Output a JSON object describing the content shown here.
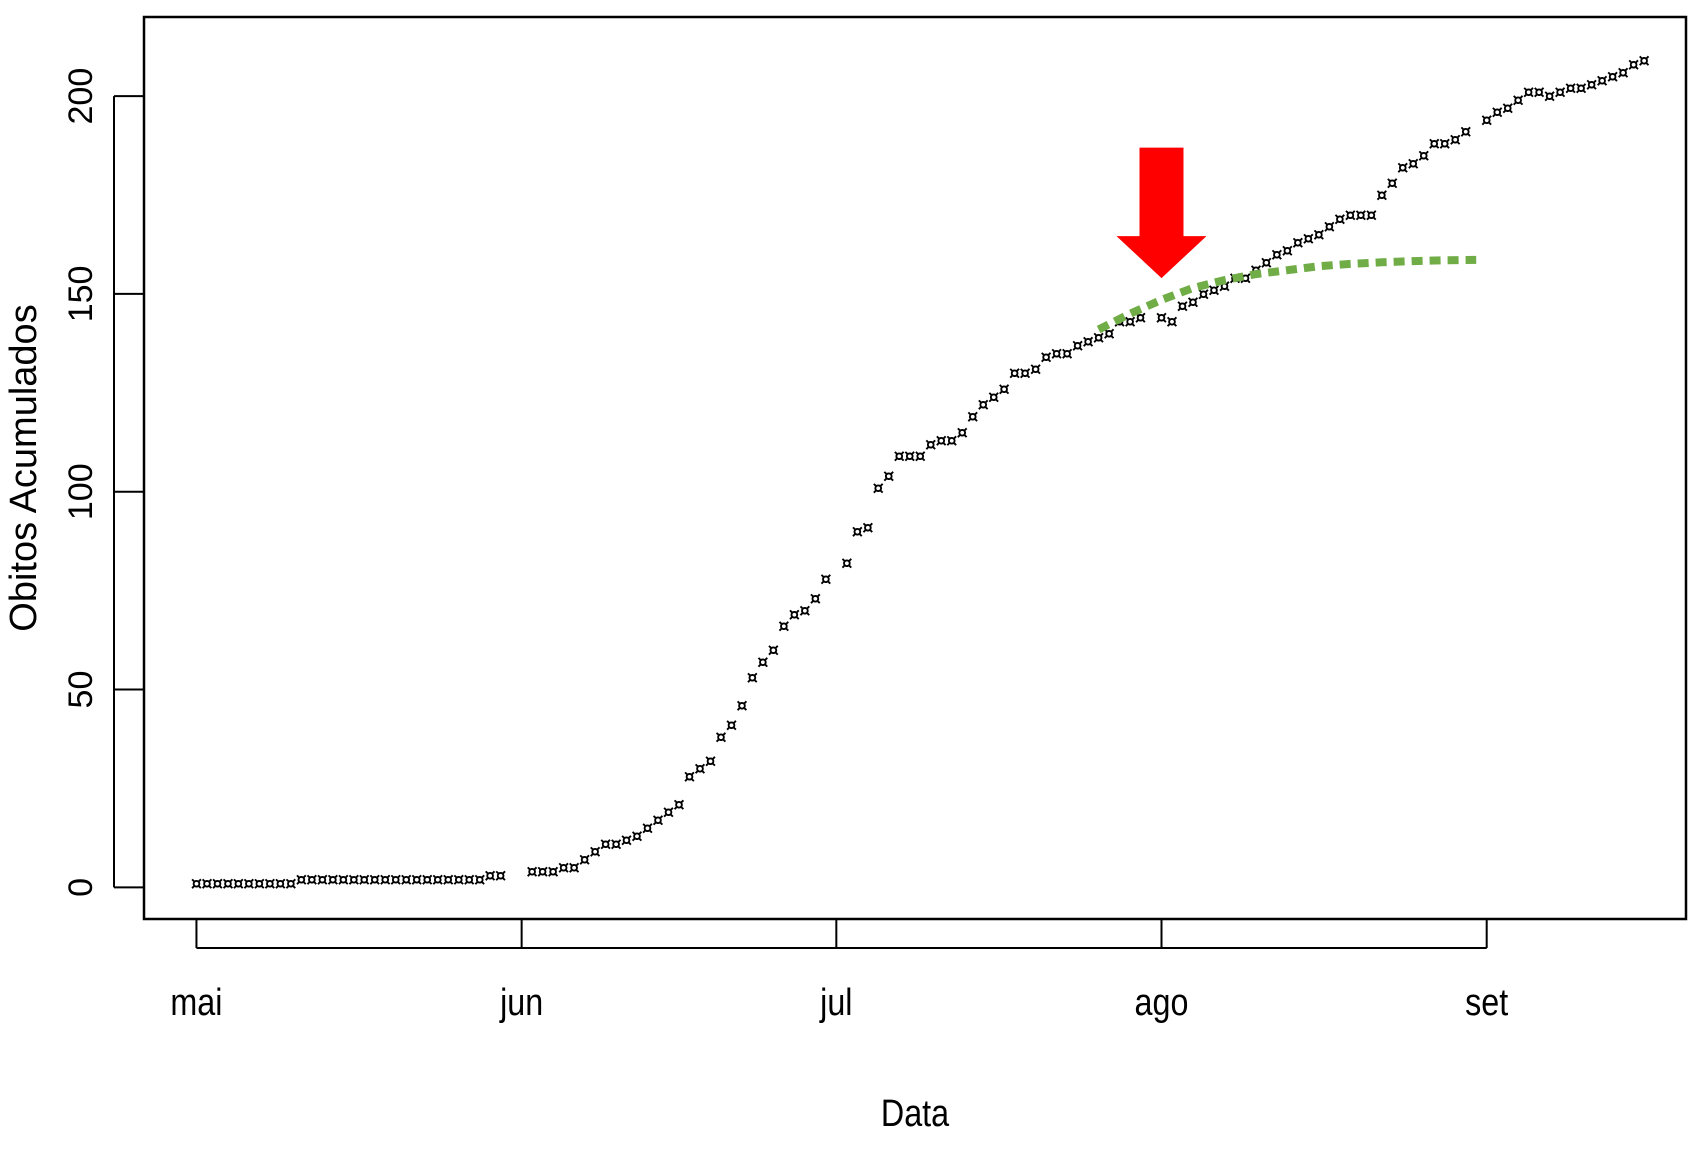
{
  "chart_data": {
    "type": "scatter",
    "xlabel": "Data",
    "ylabel": "Obitos Acumulados",
    "x_ticks": [
      {
        "label": "mai",
        "date": "2020-05-01"
      },
      {
        "label": "jun",
        "date": "2020-06-01"
      },
      {
        "label": "jul",
        "date": "2020-07-01"
      },
      {
        "label": "ago",
        "date": "2020-08-01"
      },
      {
        "label": "set",
        "date": "2020-09-01"
      }
    ],
    "xlim": [
      "2020-04-26",
      "2020-09-20"
    ],
    "ylim": [
      -8,
      220
    ],
    "y_ticks": [
      0,
      50,
      100,
      150,
      200
    ],
    "grid": false,
    "marker_glyph": "¤",
    "series": [
      {
        "style": "points",
        "color": "#000000",
        "x": [
          "2020-05-01",
          "2020-05-02",
          "2020-05-03",
          "2020-05-04",
          "2020-05-05",
          "2020-05-06",
          "2020-05-07",
          "2020-05-08",
          "2020-05-09",
          "2020-05-10",
          "2020-05-11",
          "2020-05-12",
          "2020-05-13",
          "2020-05-14",
          "2020-05-15",
          "2020-05-16",
          "2020-05-17",
          "2020-05-18",
          "2020-05-19",
          "2020-05-20",
          "2020-05-21",
          "2020-05-22",
          "2020-05-23",
          "2020-05-24",
          "2020-05-25",
          "2020-05-26",
          "2020-05-27",
          "2020-05-28",
          "2020-05-29",
          "2020-05-30",
          "2020-06-02",
          "2020-06-03",
          "2020-06-04",
          "2020-06-05",
          "2020-06-06",
          "2020-06-07",
          "2020-06-08",
          "2020-06-09",
          "2020-06-10",
          "2020-06-11",
          "2020-06-12",
          "2020-06-13",
          "2020-06-14",
          "2020-06-15",
          "2020-06-16",
          "2020-06-17",
          "2020-06-18",
          "2020-06-19",
          "2020-06-20",
          "2020-06-21",
          "2020-06-22",
          "2020-06-23",
          "2020-06-24",
          "2020-06-25",
          "2020-06-26",
          "2020-06-27",
          "2020-06-28",
          "2020-06-29",
          "2020-06-30",
          "2020-07-02",
          "2020-07-03",
          "2020-07-04",
          "2020-07-05",
          "2020-07-06",
          "2020-07-07",
          "2020-07-08",
          "2020-07-09",
          "2020-07-10",
          "2020-07-11",
          "2020-07-12",
          "2020-07-13",
          "2020-07-14",
          "2020-07-15",
          "2020-07-16",
          "2020-07-17",
          "2020-07-18",
          "2020-07-19",
          "2020-07-20",
          "2020-07-21",
          "2020-07-22",
          "2020-07-23",
          "2020-07-24",
          "2020-07-25",
          "2020-07-26",
          "2020-07-27",
          "2020-07-28",
          "2020-07-29",
          "2020-07-30",
          "2020-08-01",
          "2020-08-02",
          "2020-08-03",
          "2020-08-04",
          "2020-08-05",
          "2020-08-06",
          "2020-08-07",
          "2020-08-08",
          "2020-08-09",
          "2020-08-10",
          "2020-08-11",
          "2020-08-12",
          "2020-08-13",
          "2020-08-14",
          "2020-08-15",
          "2020-08-16",
          "2020-08-17",
          "2020-08-18",
          "2020-08-19",
          "2020-08-20",
          "2020-08-21",
          "2020-08-22",
          "2020-08-23",
          "2020-08-24",
          "2020-08-25",
          "2020-08-26",
          "2020-08-27",
          "2020-08-28",
          "2020-08-29",
          "2020-08-30",
          "2020-09-01",
          "2020-09-02",
          "2020-09-03",
          "2020-09-04",
          "2020-09-05",
          "2020-09-06",
          "2020-09-07",
          "2020-09-08",
          "2020-09-09",
          "2020-09-10",
          "2020-09-11",
          "2020-09-12",
          "2020-09-13",
          "2020-09-14",
          "2020-09-15",
          "2020-09-16"
        ],
        "y": [
          1,
          1,
          1,
          1,
          1,
          1,
          1,
          1,
          1,
          1,
          2,
          2,
          2,
          2,
          2,
          2,
          2,
          2,
          2,
          2,
          2,
          2,
          2,
          2,
          2,
          2,
          2,
          2,
          3,
          3,
          4,
          4,
          4,
          5,
          5,
          7,
          9,
          11,
          11,
          12,
          13,
          15,
          17,
          19,
          21,
          28,
          30,
          32,
          38,
          41,
          46,
          53,
          57,
          60,
          66,
          69,
          70,
          73,
          78,
          82,
          90,
          91,
          101,
          104,
          109,
          109,
          109,
          112,
          113,
          113,
          115,
          119,
          122,
          124,
          126,
          130,
          130,
          131,
          134,
          135,
          135,
          137,
          138,
          139,
          140,
          143,
          143,
          144,
          144,
          143,
          147,
          148,
          150,
          151,
          152,
          154,
          154,
          156,
          158,
          160,
          161,
          163,
          164,
          165,
          167,
          169,
          170,
          170,
          170,
          175,
          178,
          182,
          183,
          185,
          188,
          188,
          189,
          191,
          194,
          196,
          197,
          199,
          201,
          201,
          200,
          201,
          202,
          202,
          203,
          204,
          205,
          206,
          208,
          209
        ]
      },
      {
        "style": "dotted-line",
        "color": "#70ad47",
        "x": [
          "2020-07-26",
          "2020-07-29",
          "2020-08-01",
          "2020-08-04",
          "2020-08-07",
          "2020-08-10",
          "2020-08-13",
          "2020-08-16",
          "2020-08-19",
          "2020-08-22",
          "2020-08-25",
          "2020-08-28",
          "2020-08-31"
        ],
        "y": [
          141,
          145,
          148.5,
          151.5,
          153.5,
          155,
          156,
          157,
          157.6,
          158,
          158.3,
          158.5,
          158.6
        ]
      }
    ],
    "annotation": {
      "kind": "arrow-down",
      "color": "#ff0000",
      "date": "2020-08-01",
      "y_tip": 154,
      "y_top": 187
    }
  }
}
